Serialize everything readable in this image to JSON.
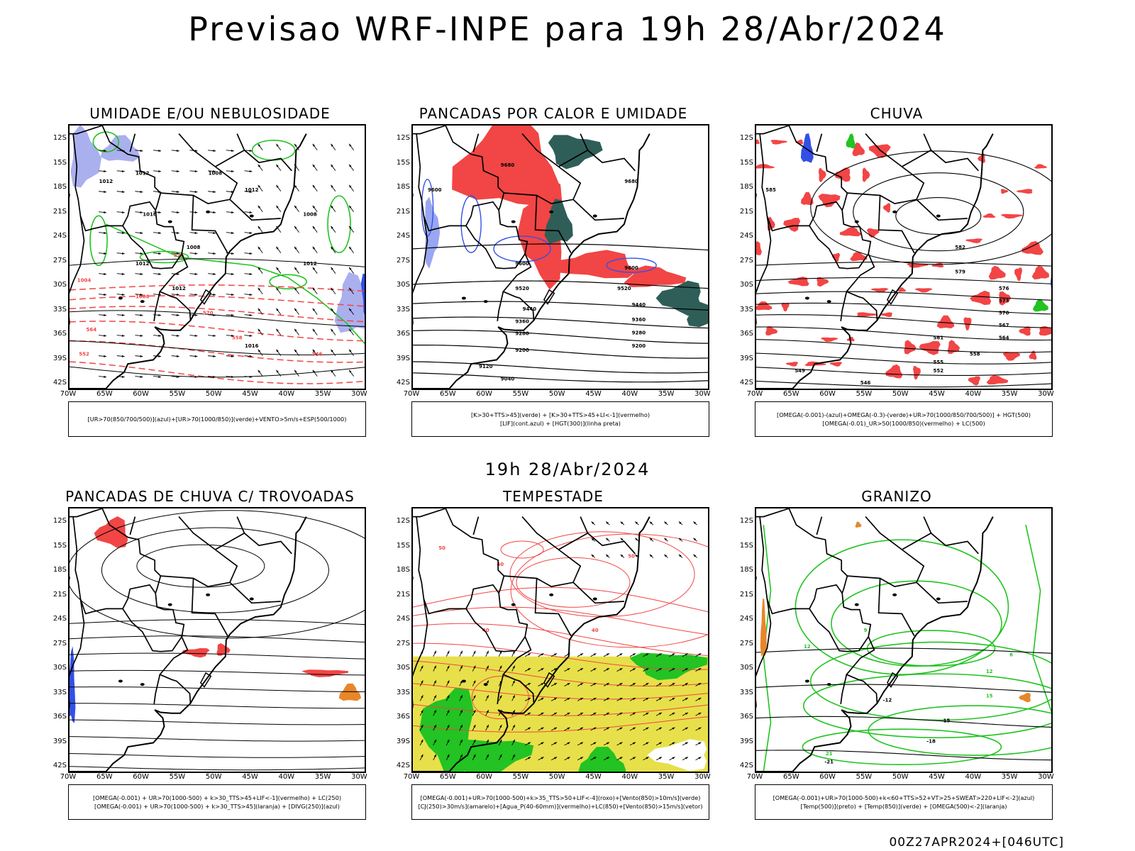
{
  "header": {
    "main_title": "Previsao WRF-INPE  para 19h 28/Abr/2024",
    "mid_title": "19h 28/Abr/2024",
    "footer": "00Z27APR2024+[046UTC]"
  },
  "axes": {
    "lat_labels": [
      "12S",
      "15S",
      "18S",
      "21S",
      "24S",
      "27S",
      "30S",
      "33S",
      "36S",
      "39S",
      "42S"
    ],
    "lon_labels": [
      "70W",
      "65W",
      "60W",
      "55W",
      "50W",
      "45W",
      "40W",
      "35W",
      "30W"
    ]
  },
  "colors": {
    "red": "#f24545",
    "green": "#22c322",
    "blue": "#3350e6",
    "lavender": "#aab0ee",
    "darkgreen": "#2f5e58",
    "yellow": "#e7e04a",
    "orange": "#e8862a"
  },
  "panels": [
    {
      "id": "umidade",
      "title": "UMIDADE E/OU NEBULOSIDADE",
      "legend": [
        "[UR>70(850/700/500)](azul)+[UR>70(1000/850)](verde)+VENTO>5m/s+ESP(500/1000)"
      ],
      "contour_labels": [
        "1012",
        "1008",
        "1012",
        "1012",
        "1016",
        "1008",
        "1012",
        "1012",
        "1008",
        "1016",
        "1012",
        "1008",
        "1004",
        "1008",
        "570",
        "564",
        "558",
        "552",
        "546",
        "576"
      ]
    },
    {
      "id": "pancadas-calor",
      "title": "PANCADAS POR CALOR E UMIDADE",
      "legend": [
        "[K>30+TTS>45](verde) + [K>30+TTS>45+LI<-1](vermelho)",
        "[LIF](cont.azul) + [HGT(300)](linha preta)"
      ],
      "contour_labels": [
        "9680",
        "9600",
        "9600",
        "9520",
        "9440",
        "9360",
        "9280",
        "9200",
        "9120",
        "9040",
        "9520",
        "9440",
        "9360",
        "9280",
        "9200",
        "9600",
        "9680"
      ]
    },
    {
      "id": "chuva",
      "title": "CHUVA",
      "legend": [
        "[OMEGA(-0.001)-(azul)+OMEGA(-0.3)-(verde)+UR>70(1000/850/700/500)] + HGT(500)",
        "[OMEGA(-0.01)_UR>50(1000/850)(vermelho) + LC(500)"
      ],
      "contour_labels": [
        "585",
        "582",
        "579",
        "576",
        "573",
        "570",
        "567",
        "564",
        "561",
        "558",
        "555",
        "552",
        "549",
        "546"
      ]
    },
    {
      "id": "pancadas-trovoadas",
      "title": "PANCADAS DE CHUVA C/ TROVOADAS",
      "legend": [
        "[OMEGA(-0.001) + UR>70(1000-500) + k>30_TTS>45+LIF<-1](vermelho) + LC(250)",
        "[OMEGA(-0.001) + UR>70(1000-500) + k>30_TTS>45](laranja) + [DIVG(250)](azul)"
      ],
      "contour_labels": []
    },
    {
      "id": "tempestade",
      "title": "TEMPESTADE",
      "legend": [
        "[OMEGA(-0.001)+UR>70(1000-500)+k>35_TTS>50+LIF<-4](roxo)+[Vento(850)>10m/s](verde)",
        "[CJ(250)>30m/s](amarelo)+[Agua_P(40-60mm)](vermelho)+LC(850)+[Vento(850)>15m/s](vetor)"
      ],
      "contour_labels": [
        "50",
        "40",
        "50",
        "40",
        "40"
      ]
    },
    {
      "id": "granizo",
      "title": "GRANIZO",
      "legend": [
        "[OMEGA(-0.001)+UR>70(1000-500)+k<60+TTS>52+VT>25+SWEAT>220+LIF<-2](azul)",
        "[Temp(500)](preto) + [Temp(850)](verde) + [OMEGA(500)<-2](laranja)"
      ],
      "contour_labels": [
        "-12",
        "-15",
        "-18",
        "-21",
        "12",
        "15",
        "9",
        "6",
        "12",
        "21"
      ]
    }
  ]
}
